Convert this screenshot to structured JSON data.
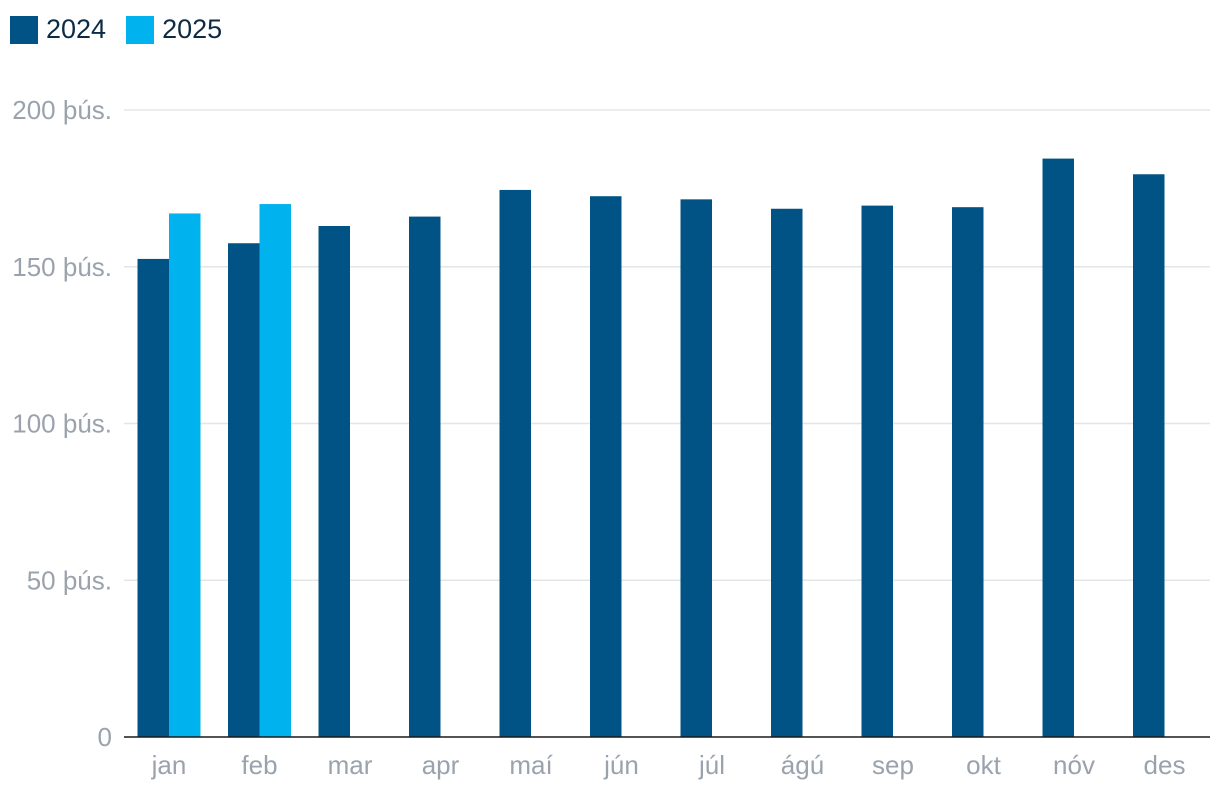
{
  "chart_data": {
    "type": "bar",
    "categories": [
      "jan",
      "feb",
      "mar",
      "apr",
      "maí",
      "jún",
      "júl",
      "ágú",
      "sep",
      "okt",
      "nóv",
      "des"
    ],
    "series": [
      {
        "name": "2024",
        "color": "#005384",
        "values": [
          152500,
          157500,
          163000,
          166000,
          174500,
          172500,
          171500,
          168500,
          169500,
          169000,
          184500,
          179500
        ]
      },
      {
        "name": "2025",
        "color": "#00b3ef",
        "values": [
          167000,
          170000,
          null,
          null,
          null,
          null,
          null,
          null,
          null,
          null,
          null,
          null
        ]
      }
    ],
    "ylim": [
      0,
      200000
    ],
    "yticks": [
      {
        "value": 0,
        "label": "0"
      },
      {
        "value": 50000,
        "label": "50 þús."
      },
      {
        "value": 100000,
        "label": "100 þús."
      },
      {
        "value": 150000,
        "label": "150 þús."
      },
      {
        "value": 200000,
        "label": "200 þús."
      }
    ],
    "grid": true,
    "legend_position": "top-left",
    "title": "",
    "xlabel": "",
    "ylabel": ""
  }
}
